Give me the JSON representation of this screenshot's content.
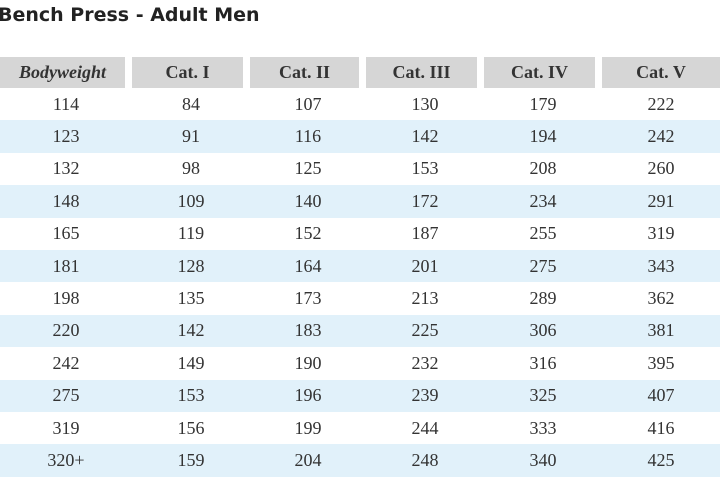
{
  "title": "Bench Press - Adult Men",
  "table": {
    "header": [
      "Bodyweight",
      "Cat. I",
      "Cat. II",
      "Cat.  III",
      "Cat. IV",
      "Cat. V"
    ],
    "rows": [
      [
        114,
        84,
        107,
        130,
        179,
        222
      ],
      [
        123,
        91,
        116,
        142,
        194,
        242
      ],
      [
        132,
        98,
        125,
        153,
        208,
        260
      ],
      [
        148,
        109,
        140,
        172,
        234,
        291
      ],
      [
        165,
        119,
        152,
        187,
        255,
        319
      ],
      [
        181,
        128,
        164,
        201,
        275,
        343
      ],
      [
        198,
        135,
        173,
        213,
        289,
        362
      ],
      [
        220,
        142,
        183,
        225,
        306,
        381
      ],
      [
        242,
        149,
        190,
        232,
        316,
        395
      ],
      [
        275,
        153,
        196,
        239,
        325,
        407
      ],
      [
        319,
        156,
        199,
        244,
        333,
        416
      ],
      [
        "320+",
        159,
        204,
        248,
        340,
        425
      ]
    ]
  }
}
